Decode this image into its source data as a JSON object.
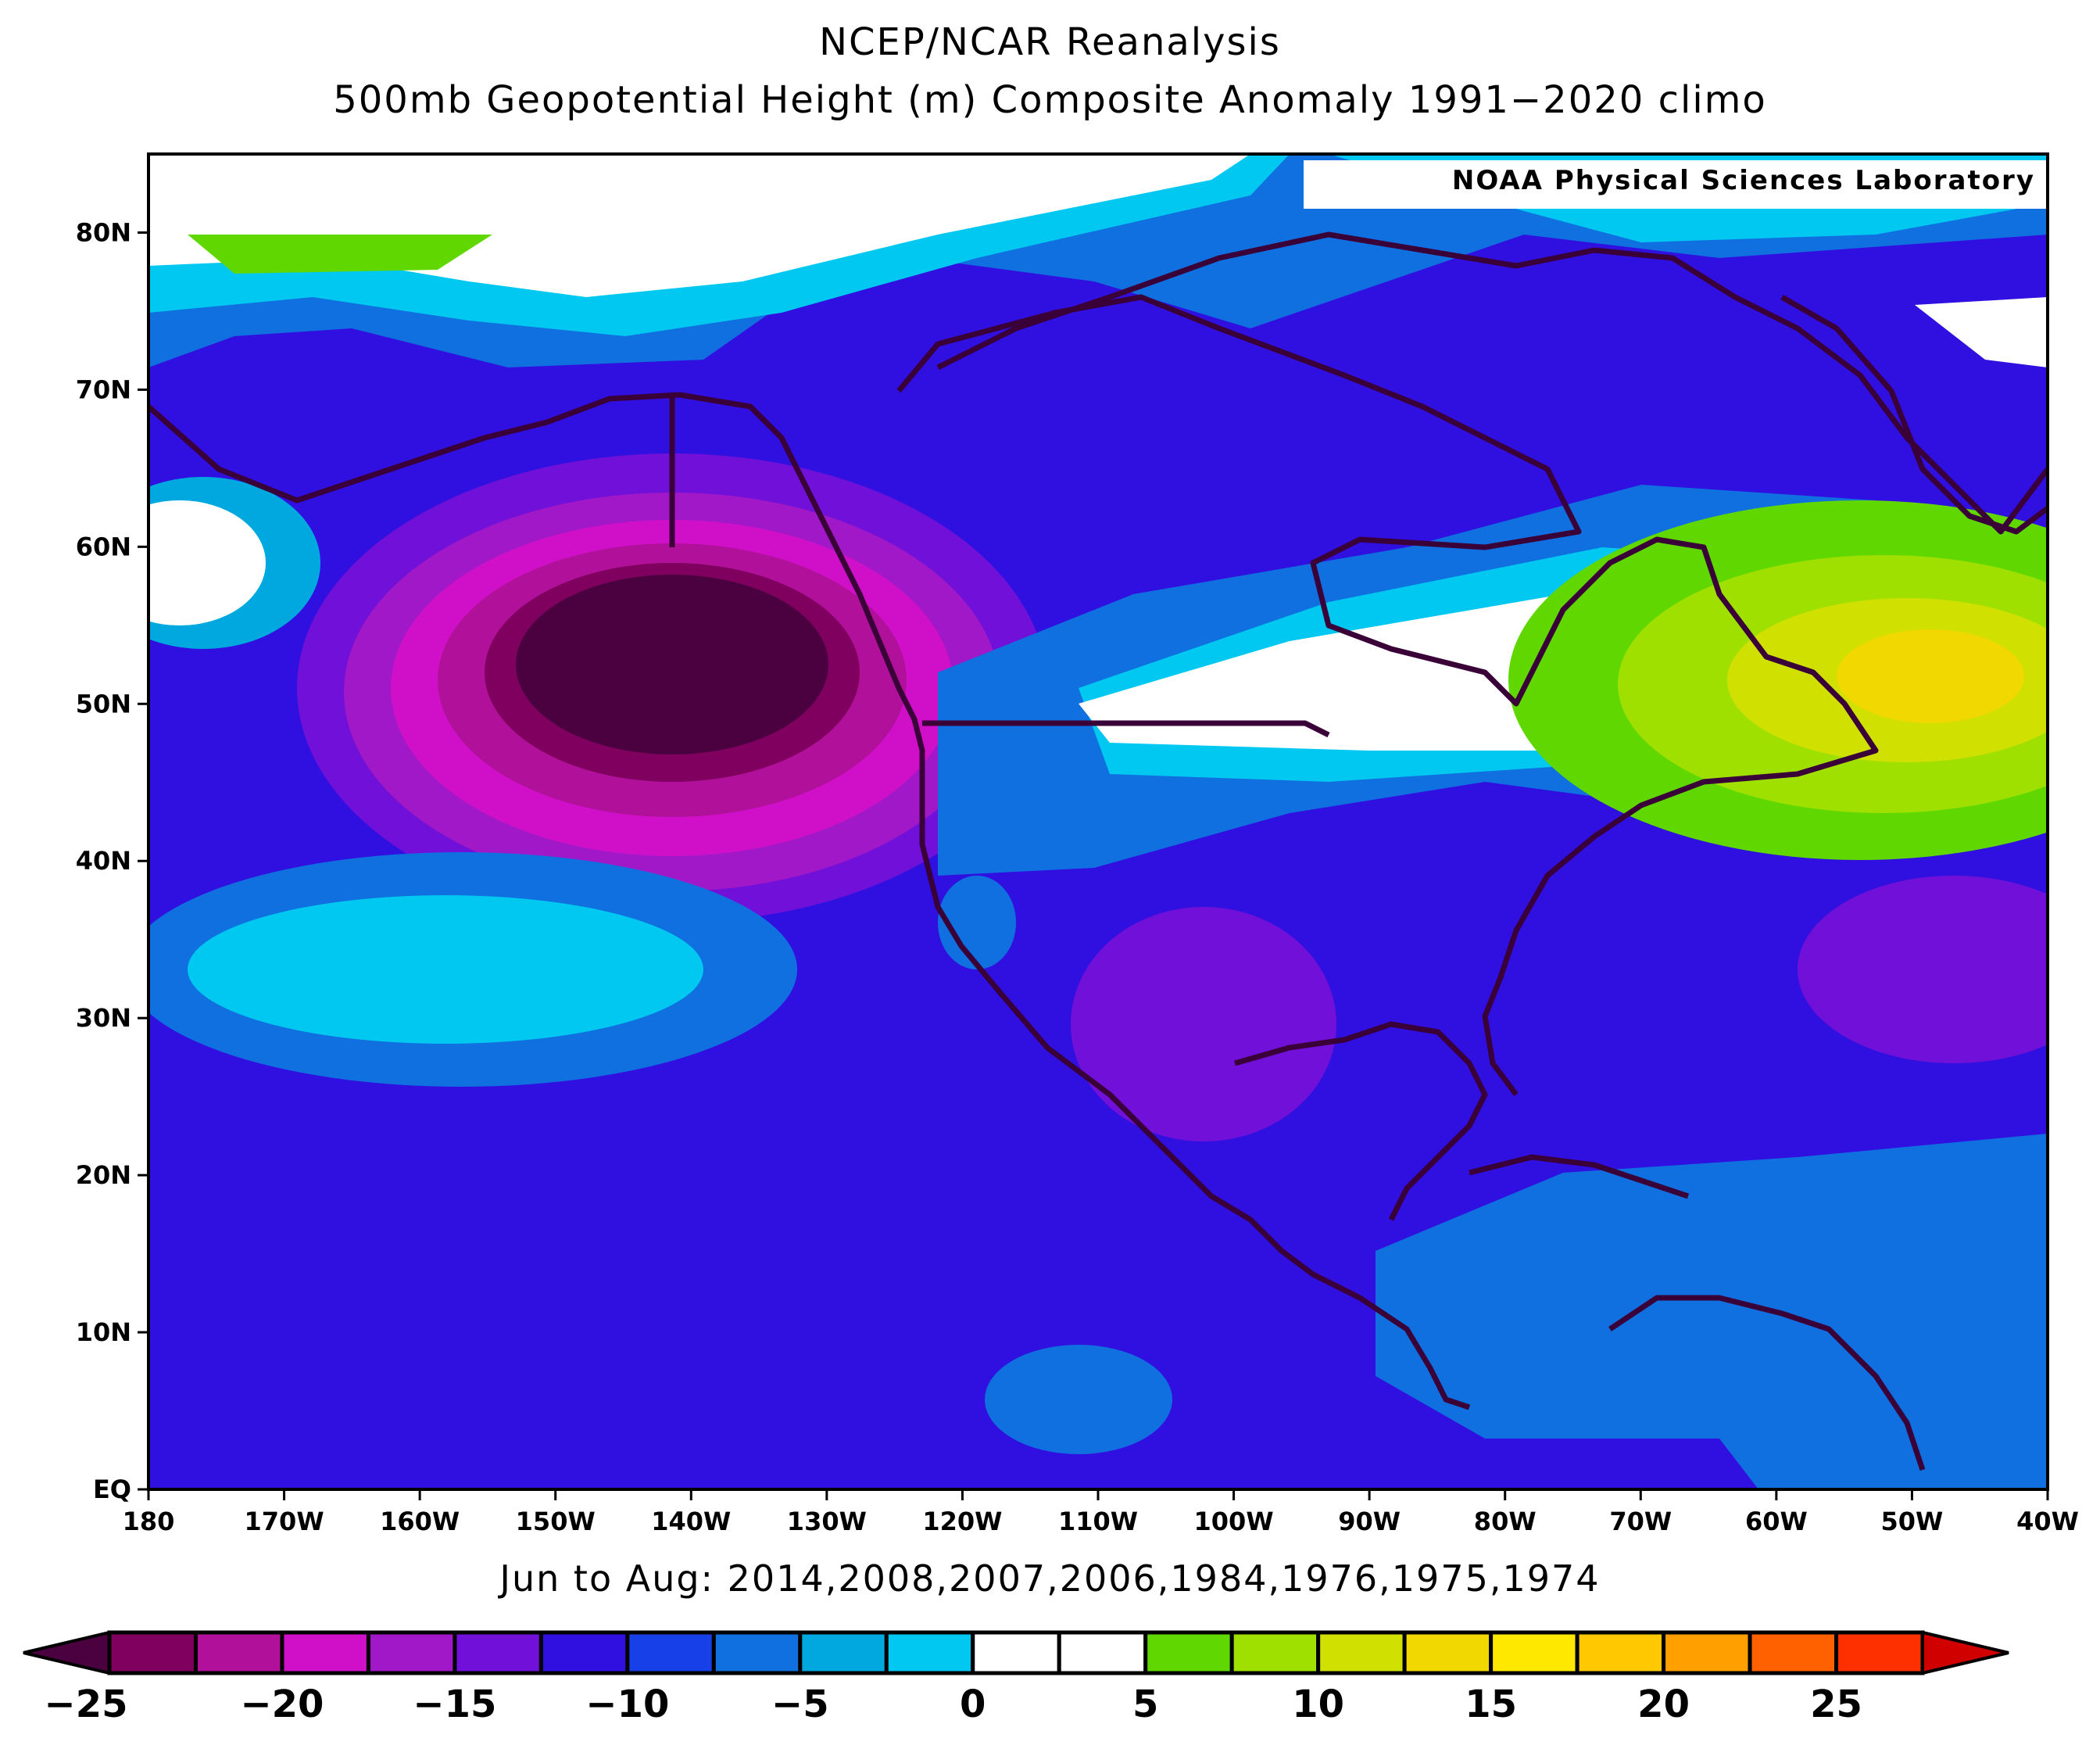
{
  "header": {
    "title": "NCEP/NCAR Reanalysis",
    "subtitle": "500mb Geopotential Height (m) Composite Anomaly 1991−2020 climo"
  },
  "map": {
    "credit": "NOAA Physical Sciences Laboratory",
    "lat_labels": [
      "EQ",
      "10N",
      "20N",
      "30N",
      "40N",
      "50N",
      "60N",
      "70N",
      "80N"
    ],
    "lon_labels": [
      "180",
      "170W",
      "160W",
      "150W",
      "140W",
      "130W",
      "120W",
      "110W",
      "100W",
      "90W",
      "80W",
      "70W",
      "60W",
      "50W",
      "40W"
    ],
    "extent": {
      "lon_min": -180,
      "lon_max": -40,
      "lat_min": 0,
      "lat_max": 85
    },
    "anomaly_features": [
      {
        "kind": "low",
        "lon": -143,
        "lat": 53,
        "value": -25
      },
      {
        "kind": "high",
        "lon": -53,
        "lat": 51,
        "value": 12
      },
      {
        "kind": "high",
        "lon": -165,
        "lat": 78,
        "value": 3
      }
    ]
  },
  "period": "Jun to Aug: 2014,2008,2007,2006,1984,1976,1975,1974",
  "colorbar": {
    "colors": [
      "#4b0040",
      "#800060",
      "#b0109a",
      "#d010c8",
      "#a018c8",
      "#7010d8",
      "#3010e0",
      "#1840e8",
      "#1070e0",
      "#00a8e0",
      "#00c8f0",
      "#ffffff",
      "#ffffff",
      "#60d800",
      "#a0e000",
      "#d0e000",
      "#f0d800",
      "#ffe800",
      "#ffc800",
      "#ffa000",
      "#ff6000",
      "#ff3000",
      "#d00000"
    ],
    "labels": [
      "−25",
      "−20",
      "−15",
      "−10",
      "−5",
      "0",
      "5",
      "10",
      "15",
      "20",
      "25"
    ]
  }
}
